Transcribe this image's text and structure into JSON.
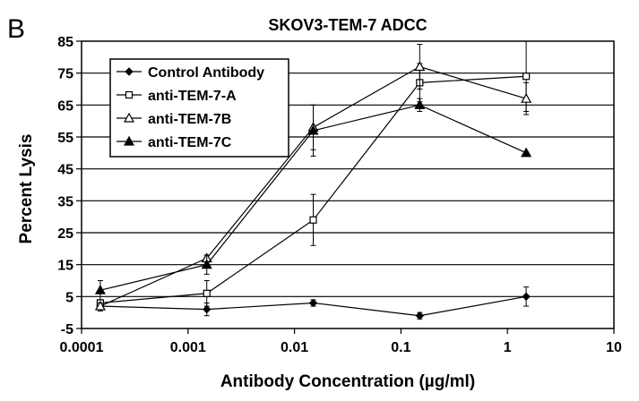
{
  "panel_label": "B",
  "chart_data": {
    "type": "line",
    "title": "SKOV3-TEM-7 ADCC",
    "xlabel": "Antibody Concentration (µg/ml)",
    "ylabel": "Percent  Lysis",
    "xscale": "log",
    "xlim": [
      0.0001,
      10
    ],
    "ylim": [
      -5,
      85
    ],
    "x_ticks": [
      0.0001,
      0.001,
      0.01,
      0.1,
      1,
      10
    ],
    "x_tick_labels": [
      "0.0001",
      "0.001",
      "0.01",
      "0.1",
      "1",
      "10"
    ],
    "y_ticks": [
      -5,
      5,
      15,
      25,
      35,
      45,
      55,
      65,
      75,
      85
    ],
    "y_tick_labels": [
      "-5",
      "5",
      "15",
      "25",
      "35",
      "45",
      "55",
      "65",
      "75",
      "85"
    ],
    "grid": "horizontal",
    "legend_position": "top-left",
    "x": [
      0.00015,
      0.0015,
      0.015,
      0.15,
      1.5
    ],
    "series": [
      {
        "name": "Control Antibody",
        "marker": "diamond-filled",
        "values": [
          2,
          1,
          3,
          -1,
          5
        ],
        "errors": [
          1.5,
          2,
          1,
          1,
          3
        ]
      },
      {
        "name": "anti-TEM-7-A",
        "marker": "square-open",
        "values": [
          3,
          6,
          29,
          72,
          74
        ],
        "errors": [
          1,
          4,
          8,
          6,
          11
        ]
      },
      {
        "name": "anti-TEM-7B",
        "marker": "triangle-open",
        "values": [
          2,
          17,
          58,
          77,
          67
        ],
        "errors": [
          1,
          1,
          7,
          7,
          5
        ]
      },
      {
        "name": "anti-TEM-7C",
        "marker": "triangle-filled",
        "values": [
          7,
          15,
          57,
          65,
          50
        ],
        "errors": [
          3,
          3,
          8,
          2,
          0
        ]
      }
    ]
  }
}
